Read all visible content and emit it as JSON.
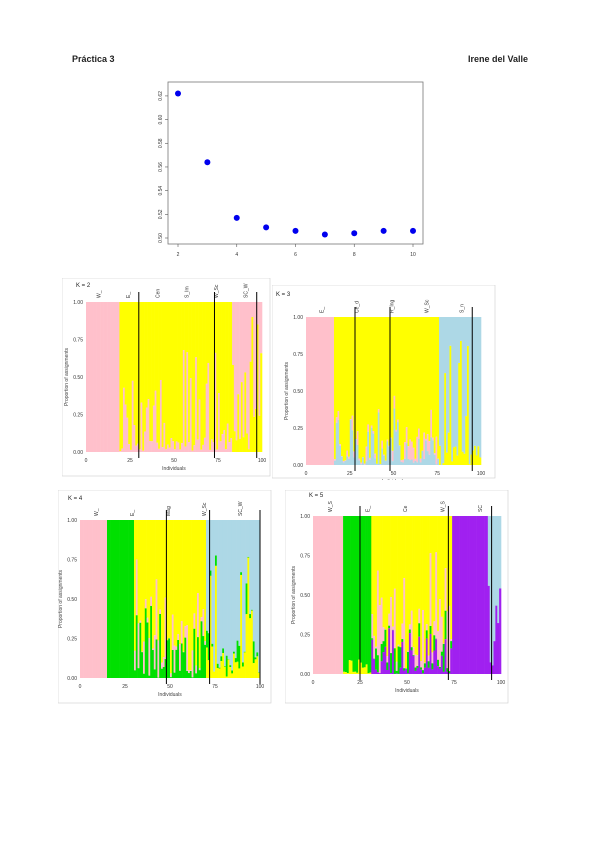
{
  "header": {
    "left": "Práctica 3",
    "right": "Irene del Valle"
  },
  "colors": {
    "pink": "#ffc0cb",
    "yellow": "#ffff00",
    "lightblue": "#add8e6",
    "green": "#00e000",
    "purple": "#a020f0",
    "dot": "#0000ee"
  },
  "chart_data": [
    {
      "type": "scatter",
      "x": [
        2,
        3,
        4,
        5,
        6,
        7,
        8,
        9,
        10
      ],
      "y": [
        0.622,
        0.564,
        0.517,
        0.509,
        0.506,
        0.503,
        0.504,
        0.506,
        0.506
      ],
      "xticks": [
        "2",
        "4",
        "6",
        "8",
        "10"
      ],
      "yticks": [
        "0.50",
        "0.52",
        "0.54",
        "0.56",
        "0.58",
        "0.60",
        "0.62"
      ],
      "xlim": [
        2,
        10
      ],
      "ylim": [
        0.5,
        0.625
      ],
      "grid": false
    },
    {
      "type": "bar",
      "title": "K = 2",
      "ylabel": "Proportion of assignments",
      "xlabel": "Individuals",
      "yticks": [
        "0.00",
        "0.25",
        "0.50",
        "0.75",
        "1.00"
      ],
      "xticks": [
        "0",
        "25",
        "50",
        "75",
        "100"
      ],
      "groups": [
        "W_",
        "E_",
        "Cen",
        "S_Im",
        "W_Sc",
        "SC_W"
      ],
      "clusters": [
        "pink",
        "yellow"
      ],
      "boundaries": [
        30,
        73,
        97
      ]
    },
    {
      "type": "bar",
      "title": "K = 3",
      "ylabel": "Proportion of assignments",
      "xlabel": "Individuals",
      "yticks": [
        "0.00",
        "0.25",
        "0.50",
        "0.75",
        "1.00"
      ],
      "xticks": [
        "0",
        "25",
        "50",
        "75",
        "100"
      ],
      "groups": [
        "E_",
        "Ce_d",
        "R_Ing",
        "W_Sc",
        "S_n"
      ],
      "clusters": [
        "pink",
        "yellow",
        "lightblue"
      ],
      "boundaries": [
        28,
        48,
        95
      ]
    },
    {
      "type": "bar",
      "title": "K = 4",
      "ylabel": "Proportion of assignments",
      "xlabel": "Individuals",
      "yticks": [
        "0.00",
        "0.25",
        "0.50",
        "0.75",
        "1.00"
      ],
      "xticks": [
        "0",
        "25",
        "50",
        "75",
        "100"
      ],
      "groups": [
        "W_",
        "E_",
        "Mag",
        "W_Sc",
        "SC_W"
      ],
      "clusters": [
        "pink",
        "green",
        "yellow",
        "lightblue"
      ],
      "boundaries": [
        48,
        72,
        100
      ]
    },
    {
      "type": "bar",
      "title": "K = 5",
      "ylabel": "Proportion of assignments",
      "xlabel": "Individuals",
      "yticks": [
        "0.00",
        "0.25",
        "0.50",
        "0.75",
        "1.00"
      ],
      "xticks": [
        "0",
        "25",
        "50",
        "75",
        "100"
      ],
      "groups": [
        "W_S",
        "E_",
        "Ce",
        "W_S",
        "SC"
      ],
      "clusters": [
        "pink",
        "green",
        "yellow",
        "purple",
        "lightblue"
      ],
      "boundaries": [
        25,
        72,
        95
      ]
    }
  ]
}
